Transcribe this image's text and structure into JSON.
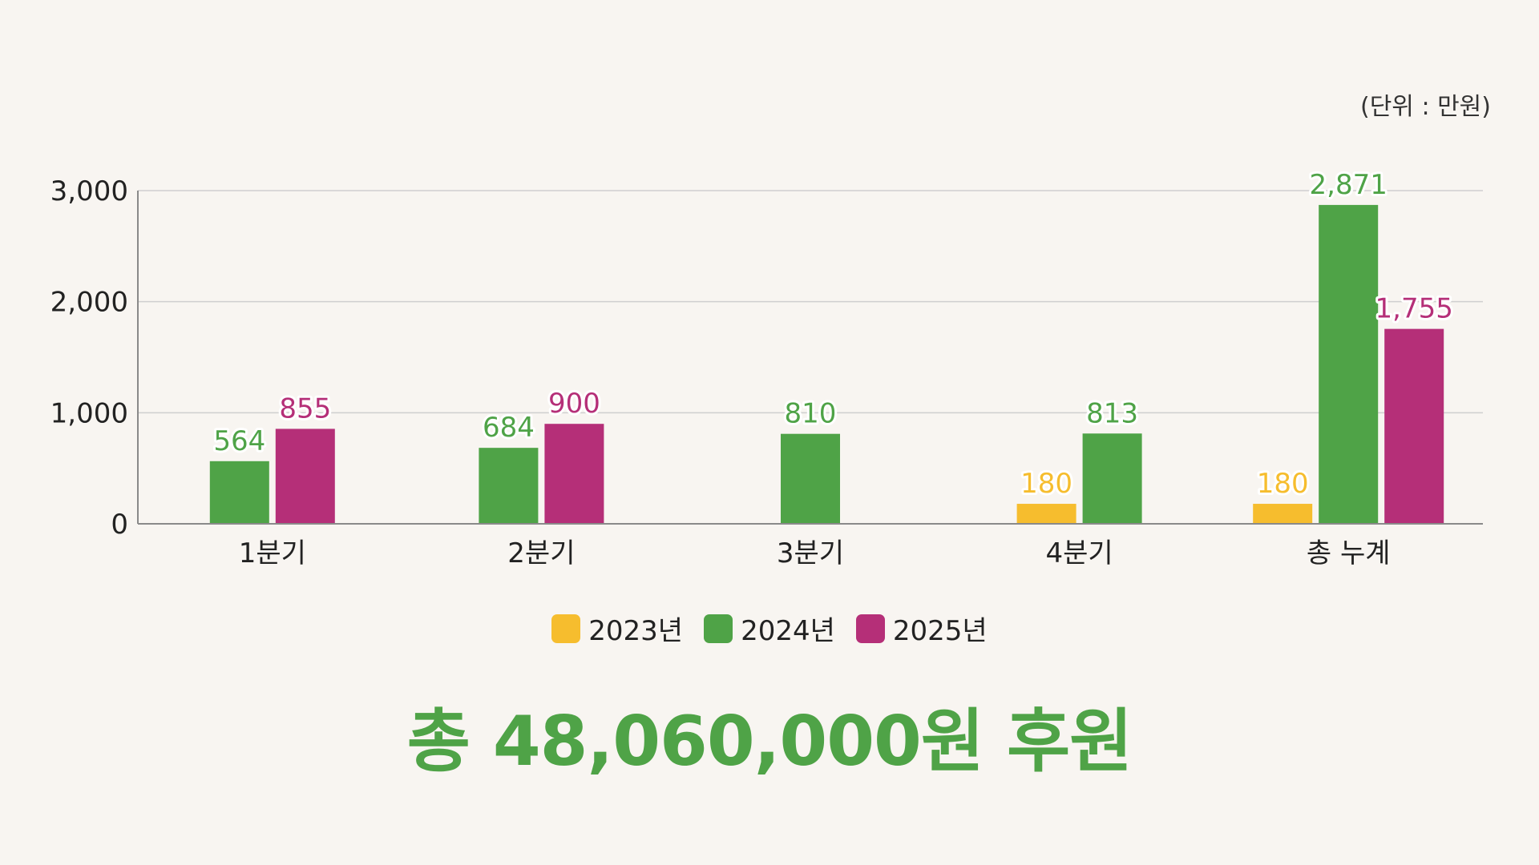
{
  "chart_data": {
    "type": "bar",
    "unit_label": "(단위 : 만원)",
    "categories": [
      "1분기",
      "2분기",
      "3분기",
      "4분기",
      "총 누계"
    ],
    "series": [
      {
        "name": "2023년",
        "color": "#f6bd2e",
        "values": [
          null,
          null,
          null,
          180,
          180
        ]
      },
      {
        "name": "2024년",
        "color": "#4fa347",
        "values": [
          564,
          684,
          810,
          813,
          2871
        ]
      },
      {
        "name": "2025년",
        "color": "#b52f78",
        "values": [
          855,
          900,
          null,
          null,
          1755
        ]
      }
    ],
    "data_labels": [
      [
        null,
        null,
        null,
        "180",
        "180"
      ],
      [
        "564",
        "684",
        "810",
        "813",
        "2,871"
      ],
      [
        "855",
        "900",
        null,
        null,
        "1,755"
      ]
    ],
    "yticks": [
      0,
      1000,
      2000,
      3000
    ],
    "ytick_labels": [
      "0",
      "1,000",
      "2,000",
      "3,000"
    ],
    "ylim": [
      0,
      3000
    ],
    "grid": true,
    "legend_position": "bottom"
  },
  "total_text": "총 48,060,000원 후원"
}
